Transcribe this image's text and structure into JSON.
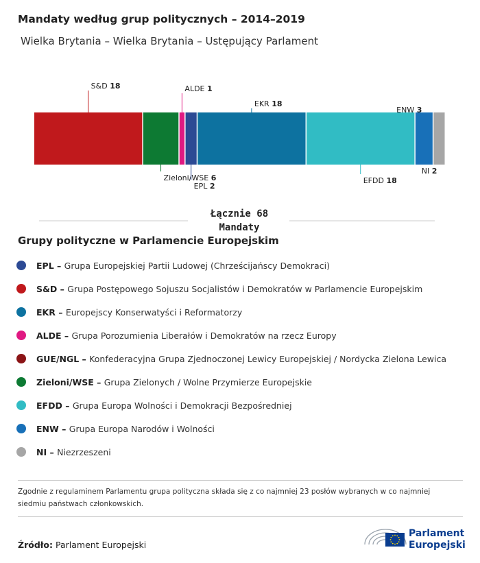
{
  "header": {
    "title": "Mandaty według grup politycznych – 2014–2019",
    "subtitle": "Wielka Brytania – Wielka Brytania – Ustępujący Parlament"
  },
  "chart_data": {
    "type": "bar",
    "orientation": "horizontal-stacked",
    "total_value": 68,
    "total_line1": "Łącznie 68",
    "total_line2": "Mandaty",
    "segments": [
      {
        "abbr": "S&D",
        "value": 18,
        "color": "#c0191c",
        "label_pos": "top"
      },
      {
        "abbr": "Zieloni/WSE",
        "value": 6,
        "color": "#0d7a33",
        "label_pos": "bottom"
      },
      {
        "abbr": "ALDE",
        "value": 1,
        "color": "#e01982",
        "label_pos": "top"
      },
      {
        "abbr": "EPL",
        "value": 2,
        "color": "#2c4a94",
        "label_pos": "bottom"
      },
      {
        "abbr": "EKR",
        "value": 18,
        "color": "#0d72a0",
        "label_pos": "top"
      },
      {
        "abbr": "EFDD",
        "value": 18,
        "color": "#31bcc4",
        "label_pos": "bottom"
      },
      {
        "abbr": "ENW",
        "value": 3,
        "color": "#1870b8",
        "label_pos": "top"
      },
      {
        "abbr": "NI",
        "value": 2,
        "color": "#a6a6a6",
        "label_pos": "bottom"
      }
    ]
  },
  "legend": {
    "title": "Grupy polityczne w Parlamencie Europejskim",
    "items": [
      {
        "abbr": "EPL",
        "desc": "Grupa Europejskiej Partii Ludowej (Chrześcijańscy Demokraci)",
        "color": "#2c4a94"
      },
      {
        "abbr": "S&D",
        "desc": "Grupa Postępowego Sojuszu Socjalistów i Demokratów w Parlamencie Europejskim",
        "color": "#c0191c"
      },
      {
        "abbr": "EKR",
        "desc": "Europejscy Konserwatyści i Reformatorzy",
        "color": "#0d72a0"
      },
      {
        "abbr": "ALDE",
        "desc": "Grupa Porozumienia Liberałów i Demokratów na rzecz Europy",
        "color": "#e01982"
      },
      {
        "abbr": "GUE/NGL",
        "desc": "Konfederacyjna Grupa Zjednoczonej Lewicy Europejskiej / Nordycka Zielona Lewica",
        "color": "#8b1416"
      },
      {
        "abbr": "Zieloni/WSE",
        "desc": "Grupa Zielonych / Wolne Przymierze Europejskie",
        "color": "#0d7a33"
      },
      {
        "abbr": "EFDD",
        "desc": "Grupa Europa Wolności i Demokracji Bezpośredniej",
        "color": "#31bcc4"
      },
      {
        "abbr": "ENW",
        "desc": "Grupa Europa Narodów i Wolności",
        "color": "#1870b8"
      },
      {
        "abbr": "NI",
        "desc": "Niezrzeszeni",
        "color": "#a6a6a6"
      }
    ]
  },
  "note": "Zgodnie z regulaminem Parlamentu grupa polityczna składa się z co najmniej 23 posłów wybranych w co najmniej siedmiu państwach członkowskich.",
  "footer": {
    "source_label": "Źródło:",
    "source_value": "Parlament Europejski",
    "logo_line1": "Parlament",
    "logo_line2": "Europejski",
    "logo_colors": {
      "blue": "#0a3d8f",
      "stars": "#ffdd00",
      "grey": "#9aa3ad"
    }
  }
}
